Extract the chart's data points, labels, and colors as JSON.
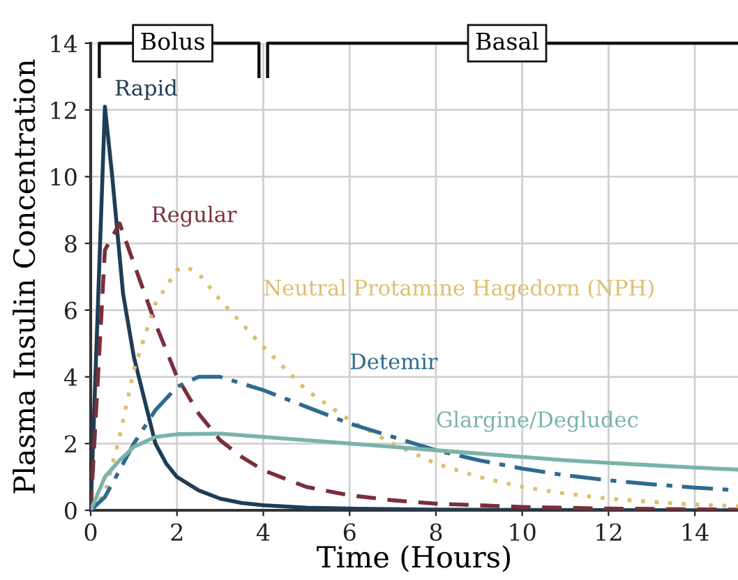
{
  "chart_data": {
    "type": "line",
    "xlabel": "Time (Hours)",
    "ylabel": "Plasma Insulin Concentration",
    "xlim": [
      0,
      15
    ],
    "ylim": [
      0,
      14
    ],
    "xticks": [
      0,
      2,
      4,
      6,
      8,
      10,
      12,
      14
    ],
    "yticks": [
      0,
      2,
      4,
      6,
      8,
      10,
      12,
      14
    ],
    "grid": true,
    "legend": false,
    "marker": "none",
    "annotations": [
      "Bolus",
      "Basal"
    ],
    "series": [
      {
        "name": "Rapid",
        "color": "#1f3d55",
        "line_style": "solid",
        "x": [
          0,
          0.33,
          0.5,
          0.75,
          1,
          1.25,
          1.5,
          1.75,
          2,
          2.5,
          3,
          3.5,
          4,
          5,
          6,
          8,
          10,
          15
        ],
        "values": [
          0,
          12.1,
          10,
          6.5,
          4.6,
          3.3,
          2.0,
          1.4,
          1.0,
          0.6,
          0.35,
          0.22,
          0.15,
          0.08,
          0.05,
          0.02,
          0.01,
          0
        ]
      },
      {
        "name": "Regular",
        "color": "#7a2e3b",
        "line_style": "dashed",
        "x": [
          0,
          0.33,
          0.5,
          0.67,
          1,
          1.5,
          2,
          2.5,
          3,
          3.5,
          4,
          5,
          6,
          7,
          8,
          10,
          12,
          15
        ],
        "values": [
          0,
          7.8,
          8.2,
          8.6,
          7.4,
          5.6,
          4.0,
          2.9,
          2.1,
          1.6,
          1.2,
          0.7,
          0.45,
          0.3,
          0.2,
          0.1,
          0.05,
          0.02
        ]
      },
      {
        "name": "Neutral Protamine Hagedorn (NPH)",
        "color": "#dcbf6e",
        "line_style": "dotted",
        "x": [
          0,
          0.33,
          0.67,
          1,
          1.5,
          2,
          2.2,
          2.5,
          3,
          3.5,
          4,
          5,
          6,
          7,
          8,
          9,
          10,
          11,
          12,
          13,
          14,
          15
        ],
        "values": [
          0,
          0.5,
          2.2,
          4.2,
          6.2,
          7.2,
          7.3,
          7.1,
          6.3,
          5.6,
          4.9,
          3.6,
          2.7,
          2.0,
          1.4,
          1.0,
          0.7,
          0.5,
          0.35,
          0.25,
          0.17,
          0.12
        ]
      },
      {
        "name": "Detemir",
        "color": "#2e6b8f",
        "line_style": "dashdot",
        "x": [
          0,
          0.33,
          0.67,
          1,
          1.5,
          2,
          2.5,
          3,
          3.5,
          4,
          5,
          6,
          7,
          8,
          9,
          10,
          11,
          12,
          13,
          14,
          15
        ],
        "values": [
          0,
          0.4,
          1.2,
          2.0,
          3.0,
          3.7,
          4.0,
          4.0,
          3.8,
          3.6,
          3.1,
          2.6,
          2.2,
          1.8,
          1.5,
          1.25,
          1.05,
          0.9,
          0.78,
          0.68,
          0.6
        ]
      },
      {
        "name": "Glargine/Degludec",
        "color": "#7ab3aa",
        "line_style": "solid",
        "x": [
          0,
          0.33,
          0.67,
          1,
          1.5,
          2,
          3,
          4,
          5,
          6,
          7,
          8,
          9,
          10,
          11,
          12,
          13,
          14,
          15
        ],
        "values": [
          0,
          1.0,
          1.5,
          1.9,
          2.2,
          2.28,
          2.3,
          2.2,
          2.1,
          2.0,
          1.9,
          1.8,
          1.7,
          1.6,
          1.5,
          1.42,
          1.35,
          1.28,
          1.22
        ]
      }
    ]
  }
}
